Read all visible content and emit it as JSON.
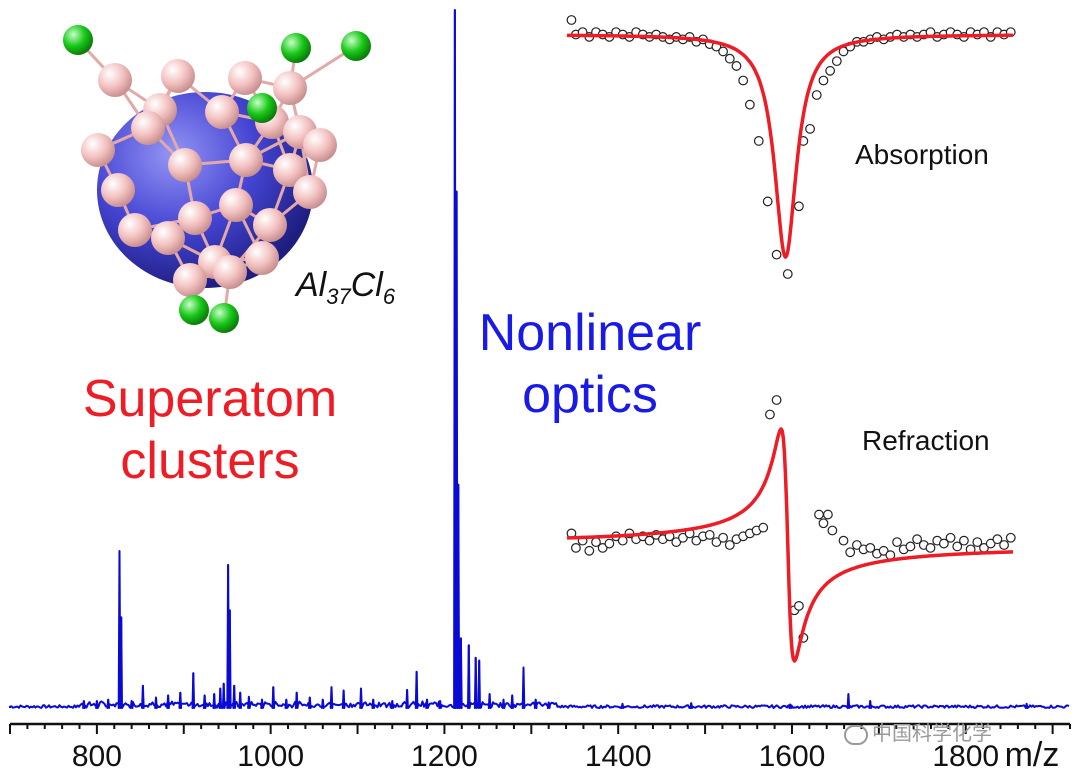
{
  "colors": {
    "spectrum": "#0a0ad6",
    "fit": "#ee1c24",
    "data_points": "#222222",
    "superatom_text": "#ee1c24",
    "optics_text": "#1a1ae6",
    "al_atom": "#f4c2c2",
    "cl_atom": "#18c818",
    "core": "#3a3ad0"
  },
  "labels": {
    "formula": {
      "al": "Al",
      "al_sub": "37",
      "cl": "Cl",
      "cl_sub": "6"
    },
    "superatom": [
      "Superatom",
      "clusters"
    ],
    "optics": [
      "Nonlinear",
      "optics"
    ],
    "absorption": "Absorption",
    "refraction": "Refraction",
    "watermark": "中国科学化学"
  },
  "icons": {
    "watermark": "wechat-icon",
    "molecule": "al37cl6-cluster-structure"
  },
  "chart_data": [
    {
      "type": "line",
      "name": "mass-spectrum",
      "title": "",
      "xlabel": "m/z",
      "ylabel": "",
      "xlim": [
        700,
        1920
      ],
      "ylim": [
        0,
        1
      ],
      "x_ticks": [
        800,
        1000,
        1200,
        1400,
        1600,
        1800
      ],
      "x_minor_step": 20,
      "grid": false,
      "peaks": [
        {
          "x": 785,
          "y": 0.01
        },
        {
          "x": 800,
          "y": 0.01
        },
        {
          "x": 813,
          "y": 0.012
        },
        {
          "x": 826,
          "y": 0.225
        },
        {
          "x": 828,
          "y": 0.13
        },
        {
          "x": 840,
          "y": 0.01
        },
        {
          "x": 853,
          "y": 0.032
        },
        {
          "x": 868,
          "y": 0.015
        },
        {
          "x": 882,
          "y": 0.018
        },
        {
          "x": 896,
          "y": 0.022
        },
        {
          "x": 911,
          "y": 0.05
        },
        {
          "x": 924,
          "y": 0.018
        },
        {
          "x": 935,
          "y": 0.02
        },
        {
          "x": 942,
          "y": 0.028
        },
        {
          "x": 946,
          "y": 0.035
        },
        {
          "x": 951,
          "y": 0.205
        },
        {
          "x": 953,
          "y": 0.14
        },
        {
          "x": 958,
          "y": 0.032
        },
        {
          "x": 965,
          "y": 0.022
        },
        {
          "x": 975,
          "y": 0.016
        },
        {
          "x": 990,
          "y": 0.012
        },
        {
          "x": 1003,
          "y": 0.03
        },
        {
          "x": 1018,
          "y": 0.012
        },
        {
          "x": 1030,
          "y": 0.022
        },
        {
          "x": 1045,
          "y": 0.015
        },
        {
          "x": 1060,
          "y": 0.012
        },
        {
          "x": 1070,
          "y": 0.03
        },
        {
          "x": 1084,
          "y": 0.025
        },
        {
          "x": 1104,
          "y": 0.028
        },
        {
          "x": 1118,
          "y": 0.012
        },
        {
          "x": 1140,
          "y": 0.01
        },
        {
          "x": 1157,
          "y": 0.026
        },
        {
          "x": 1168,
          "y": 0.052
        },
        {
          "x": 1180,
          "y": 0.012
        },
        {
          "x": 1195,
          "y": 0.01
        },
        {
          "x": 1212,
          "y": 1.0
        },
        {
          "x": 1214,
          "y": 0.74
        },
        {
          "x": 1216,
          "y": 0.32
        },
        {
          "x": 1219,
          "y": 0.1
        },
        {
          "x": 1228,
          "y": 0.09
        },
        {
          "x": 1236,
          "y": 0.072
        },
        {
          "x": 1240,
          "y": 0.068
        },
        {
          "x": 1252,
          "y": 0.02
        },
        {
          "x": 1268,
          "y": 0.012
        },
        {
          "x": 1278,
          "y": 0.018
        },
        {
          "x": 1291,
          "y": 0.058
        },
        {
          "x": 1305,
          "y": 0.012
        },
        {
          "x": 1320,
          "y": 0.008
        },
        {
          "x": 1405,
          "y": 0.006
        },
        {
          "x": 1484,
          "y": 0.007
        },
        {
          "x": 1598,
          "y": 0.005
        },
        {
          "x": 1665,
          "y": 0.02
        },
        {
          "x": 1690,
          "y": 0.01
        },
        {
          "x": 1870,
          "y": 0.006
        }
      ]
    },
    {
      "type": "line",
      "name": "absorption-inset",
      "title": "Absorption",
      "xlim": [
        -1,
        1
      ],
      "ylim": [
        0,
        1.05
      ],
      "points": [
        {
          "x": -0.98,
          "y": 1.05
        },
        {
          "x": -0.96,
          "y": 0.99
        },
        {
          "x": -0.93,
          "y": 1.0
        },
        {
          "x": -0.9,
          "y": 0.98
        },
        {
          "x": -0.87,
          "y": 1.0
        },
        {
          "x": -0.84,
          "y": 0.99
        },
        {
          "x": -0.81,
          "y": 0.98
        },
        {
          "x": -0.78,
          "y": 1.0
        },
        {
          "x": -0.75,
          "y": 0.99
        },
        {
          "x": -0.72,
          "y": 0.98
        },
        {
          "x": -0.69,
          "y": 1.0
        },
        {
          "x": -0.66,
          "y": 0.99
        },
        {
          "x": -0.63,
          "y": 0.98
        },
        {
          "x": -0.6,
          "y": 0.99
        },
        {
          "x": -0.57,
          "y": 0.98
        },
        {
          "x": -0.54,
          "y": 0.97
        },
        {
          "x": -0.51,
          "y": 0.98
        },
        {
          "x": -0.48,
          "y": 0.97
        },
        {
          "x": -0.45,
          "y": 0.98
        },
        {
          "x": -0.42,
          "y": 0.96
        },
        {
          "x": -0.39,
          "y": 0.97
        },
        {
          "x": -0.36,
          "y": 0.95
        },
        {
          "x": -0.33,
          "y": 0.94
        },
        {
          "x": -0.3,
          "y": 0.92
        },
        {
          "x": -0.27,
          "y": 0.89
        },
        {
          "x": -0.24,
          "y": 0.86
        },
        {
          "x": -0.21,
          "y": 0.8
        },
        {
          "x": -0.18,
          "y": 0.7
        },
        {
          "x": -0.14,
          "y": 0.55
        },
        {
          "x": -0.1,
          "y": 0.3
        },
        {
          "x": -0.06,
          "y": 0.08
        },
        {
          "x": -0.01,
          "y": 0.0
        },
        {
          "x": 0.04,
          "y": 0.28
        },
        {
          "x": 0.06,
          "y": 0.55
        },
        {
          "x": 0.09,
          "y": 0.6
        },
        {
          "x": 0.12,
          "y": 0.74
        },
        {
          "x": 0.15,
          "y": 0.8
        },
        {
          "x": 0.18,
          "y": 0.84
        },
        {
          "x": 0.21,
          "y": 0.88
        },
        {
          "x": 0.24,
          "y": 0.92
        },
        {
          "x": 0.27,
          "y": 0.94
        },
        {
          "x": 0.3,
          "y": 0.96
        },
        {
          "x": 0.33,
          "y": 0.96
        },
        {
          "x": 0.36,
          "y": 0.97
        },
        {
          "x": 0.39,
          "y": 0.98
        },
        {
          "x": 0.42,
          "y": 0.97
        },
        {
          "x": 0.45,
          "y": 0.98
        },
        {
          "x": 0.48,
          "y": 0.99
        },
        {
          "x": 0.51,
          "y": 0.98
        },
        {
          "x": 0.54,
          "y": 0.99
        },
        {
          "x": 0.57,
          "y": 0.98
        },
        {
          "x": 0.6,
          "y": 0.99
        },
        {
          "x": 0.63,
          "y": 1.0
        },
        {
          "x": 0.66,
          "y": 0.98
        },
        {
          "x": 0.69,
          "y": 0.99
        },
        {
          "x": 0.72,
          "y": 1.0
        },
        {
          "x": 0.75,
          "y": 0.99
        },
        {
          "x": 0.78,
          "y": 0.98
        },
        {
          "x": 0.81,
          "y": 1.0
        },
        {
          "x": 0.84,
          "y": 0.99
        },
        {
          "x": 0.87,
          "y": 1.0
        },
        {
          "x": 0.9,
          "y": 0.98
        },
        {
          "x": 0.93,
          "y": 1.0
        },
        {
          "x": 0.96,
          "y": 0.99
        },
        {
          "x": 0.99,
          "y": 1.0
        }
      ],
      "fit": {
        "kind": "lorentzian-dip",
        "center": -0.02,
        "gamma": 0.06,
        "depth": 0.92,
        "baseline": 0.99
      }
    },
    {
      "type": "line",
      "name": "refraction-inset",
      "title": "Refraction",
      "xlim": [
        -1,
        1
      ],
      "ylim": [
        -1,
        1
      ],
      "points": [
        {
          "x": -0.98,
          "y": 0.08
        },
        {
          "x": -0.96,
          "y": -0.02
        },
        {
          "x": -0.93,
          "y": 0.03
        },
        {
          "x": -0.9,
          "y": -0.04
        },
        {
          "x": -0.87,
          "y": 0.02
        },
        {
          "x": -0.84,
          "y": -0.02
        },
        {
          "x": -0.81,
          "y": 0.01
        },
        {
          "x": -0.78,
          "y": 0.06
        },
        {
          "x": -0.75,
          "y": 0.03
        },
        {
          "x": -0.72,
          "y": 0.08
        },
        {
          "x": -0.69,
          "y": 0.04
        },
        {
          "x": -0.66,
          "y": 0.06
        },
        {
          "x": -0.63,
          "y": 0.03
        },
        {
          "x": -0.6,
          "y": 0.07
        },
        {
          "x": -0.57,
          "y": 0.04
        },
        {
          "x": -0.54,
          "y": 0.06
        },
        {
          "x": -0.51,
          "y": 0.02
        },
        {
          "x": -0.48,
          "y": 0.05
        },
        {
          "x": -0.45,
          "y": 0.08
        },
        {
          "x": -0.42,
          "y": 0.03
        },
        {
          "x": -0.39,
          "y": 0.06
        },
        {
          "x": -0.36,
          "y": 0.07
        },
        {
          "x": -0.33,
          "y": 0.02
        },
        {
          "x": -0.3,
          "y": 0.05
        },
        {
          "x": -0.27,
          "y": 0.0
        },
        {
          "x": -0.24,
          "y": 0.04
        },
        {
          "x": -0.21,
          "y": 0.06
        },
        {
          "x": -0.18,
          "y": 0.08
        },
        {
          "x": -0.15,
          "y": 0.1
        },
        {
          "x": -0.12,
          "y": 0.12
        },
        {
          "x": -0.09,
          "y": 0.9
        },
        {
          "x": -0.06,
          "y": 1.0
        },
        {
          "x": 0.02,
          "y": -0.45
        },
        {
          "x": 0.04,
          "y": -0.42
        },
        {
          "x": 0.06,
          "y": -0.64
        },
        {
          "x": 0.13,
          "y": 0.21
        },
        {
          "x": 0.15,
          "y": 0.15
        },
        {
          "x": 0.17,
          "y": 0.21
        },
        {
          "x": 0.19,
          "y": 0.1
        },
        {
          "x": 0.24,
          "y": 0.03
        },
        {
          "x": 0.27,
          "y": -0.05
        },
        {
          "x": 0.3,
          "y": 0.0
        },
        {
          "x": 0.33,
          "y": -0.03
        },
        {
          "x": 0.36,
          "y": -0.02
        },
        {
          "x": 0.39,
          "y": -0.06
        },
        {
          "x": 0.42,
          "y": -0.04
        },
        {
          "x": 0.45,
          "y": -0.07
        },
        {
          "x": 0.48,
          "y": 0.02
        },
        {
          "x": 0.51,
          "y": -0.03
        },
        {
          "x": 0.54,
          "y": -0.01
        },
        {
          "x": 0.57,
          "y": 0.04
        },
        {
          "x": 0.6,
          "y": 0.0
        },
        {
          "x": 0.63,
          "y": -0.02
        },
        {
          "x": 0.66,
          "y": 0.03
        },
        {
          "x": 0.69,
          "y": 0.01
        },
        {
          "x": 0.72,
          "y": 0.05
        },
        {
          "x": 0.75,
          "y": -0.01
        },
        {
          "x": 0.78,
          "y": 0.03
        },
        {
          "x": 0.81,
          "y": -0.03
        },
        {
          "x": 0.84,
          "y": 0.02
        },
        {
          "x": 0.87,
          "y": -0.02
        },
        {
          "x": 0.9,
          "y": 0.01
        },
        {
          "x": 0.93,
          "y": 0.04
        },
        {
          "x": 0.96,
          "y": 0.0
        },
        {
          "x": 0.99,
          "y": 0.05
        }
      ],
      "fit": {
        "kind": "dispersive",
        "center": -0.01,
        "gamma": 0.03,
        "amplitude": 1.6,
        "baseline": 0.0
      }
    }
  ]
}
